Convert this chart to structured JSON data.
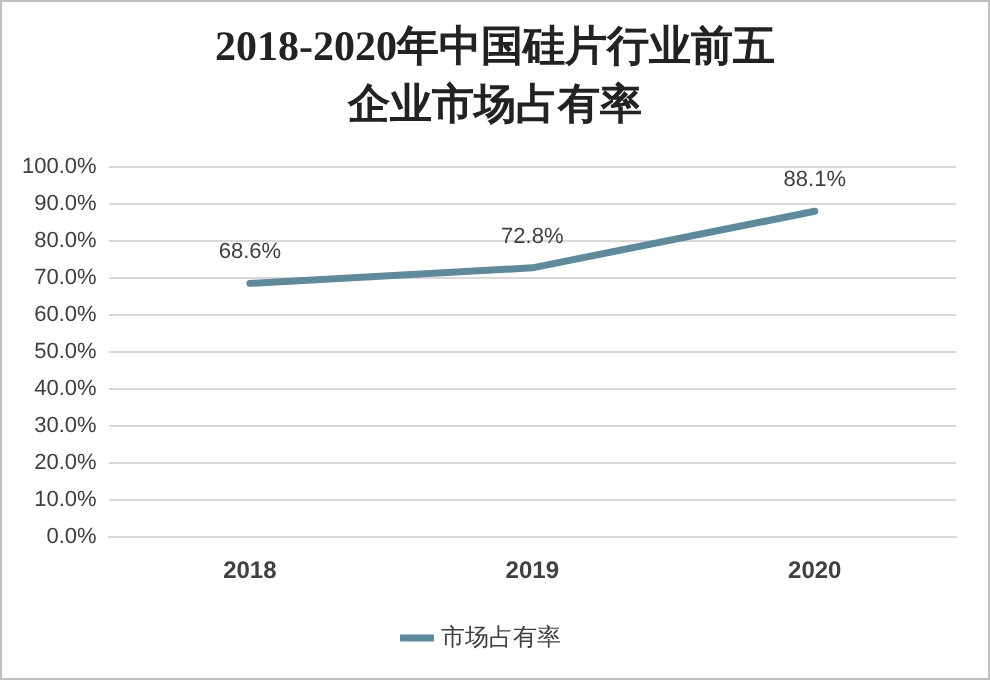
{
  "chart_data": {
    "type": "line",
    "title": "2018-2020年中国硅片行业前五企业市场占有率",
    "categories": [
      "2018",
      "2019",
      "2020"
    ],
    "series": [
      {
        "name": "市场占有率",
        "color": "#5f8a9c",
        "values": [
          68.6,
          72.8,
          88.1
        ]
      }
    ],
    "ylim": [
      0,
      100
    ],
    "yticks": [
      {
        "value": 0,
        "label": "0.0%"
      },
      {
        "value": 10,
        "label": "10.0%"
      },
      {
        "value": 20,
        "label": "20.0%"
      },
      {
        "value": 30,
        "label": "30.0%"
      },
      {
        "value": 40,
        "label": "40.0%"
      },
      {
        "value": 50,
        "label": "50.0%"
      },
      {
        "value": 60,
        "label": "60.0%"
      },
      {
        "value": 70,
        "label": "70.0%"
      },
      {
        "value": 80,
        "label": "80.0%"
      },
      {
        "value": 90,
        "label": "90.0%"
      },
      {
        "value": 100,
        "label": "100.0%"
      }
    ],
    "value_labels": [
      [
        "68.6%",
        "72.8%",
        "88.1%"
      ]
    ],
    "grid": "y",
    "legend": "bottom",
    "marker": "none",
    "line_style": "solid"
  }
}
